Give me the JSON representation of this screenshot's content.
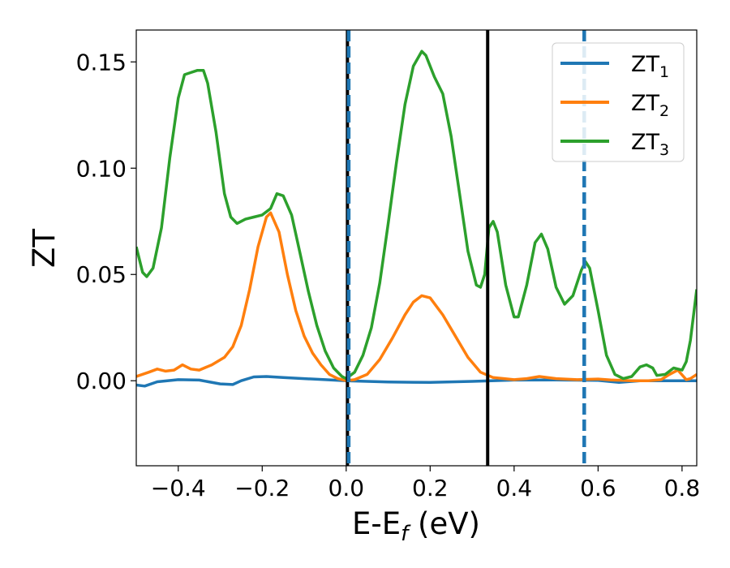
{
  "chart_data": {
    "type": "line",
    "xlabel": {
      "main": "E-E",
      "sub": "f",
      "unit": " (eV)"
    },
    "ylabel": "ZT",
    "xlim": [
      -0.5,
      0.835
    ],
    "ylim": [
      -0.04,
      0.165
    ],
    "xticks": [
      -0.4,
      -0.2,
      0.0,
      0.2,
      0.4,
      0.6,
      0.8
    ],
    "xtick_labels": [
      "−0.4",
      "−0.2",
      "0.0",
      "0.2",
      "0.4",
      "0.6",
      "0.8"
    ],
    "yticks": [
      0.0,
      0.05,
      0.1,
      0.15
    ],
    "ytick_labels": [
      "0.00",
      "0.05",
      "0.10",
      "0.15"
    ],
    "grid": false,
    "legend_position": "top-right",
    "series": [
      {
        "name": "ZT",
        "sub": "1",
        "color": "#1f77b4",
        "points": [
          [
            -0.5,
            -0.002
          ],
          [
            -0.48,
            -0.0025
          ],
          [
            -0.45,
            -0.0005
          ],
          [
            -0.4,
            0.0005
          ],
          [
            -0.35,
            0.0003
          ],
          [
            -0.3,
            -0.0015
          ],
          [
            -0.27,
            -0.0018
          ],
          [
            -0.25,
            0.0
          ],
          [
            -0.22,
            0.0018
          ],
          [
            -0.19,
            0.002
          ],
          [
            -0.15,
            0.0015
          ],
          [
            -0.1,
            0.001
          ],
          [
            -0.05,
            0.0005
          ],
          [
            0.0,
            0.0
          ],
          [
            0.05,
            -0.0003
          ],
          [
            0.1,
            -0.0006
          ],
          [
            0.2,
            -0.0008
          ],
          [
            0.3,
            -0.0003
          ],
          [
            0.4,
            0.0003
          ],
          [
            0.5,
            0.0004
          ],
          [
            0.6,
            0.0002
          ],
          [
            0.65,
            -0.0008
          ],
          [
            0.7,
            0.0
          ],
          [
            0.8,
            0.0
          ],
          [
            0.835,
            0.0
          ]
        ]
      },
      {
        "name": "ZT",
        "sub": "2",
        "color": "#ff7f0e",
        "points": [
          [
            -0.5,
            0.002
          ],
          [
            -0.47,
            0.004
          ],
          [
            -0.45,
            0.0055
          ],
          [
            -0.43,
            0.0045
          ],
          [
            -0.41,
            0.005
          ],
          [
            -0.39,
            0.0075
          ],
          [
            -0.37,
            0.0055
          ],
          [
            -0.35,
            0.005
          ],
          [
            -0.32,
            0.0075
          ],
          [
            -0.29,
            0.011
          ],
          [
            -0.27,
            0.016
          ],
          [
            -0.25,
            0.026
          ],
          [
            -0.23,
            0.043
          ],
          [
            -0.21,
            0.063
          ],
          [
            -0.19,
            0.077
          ],
          [
            -0.18,
            0.079
          ],
          [
            -0.16,
            0.07
          ],
          [
            -0.14,
            0.05
          ],
          [
            -0.12,
            0.033
          ],
          [
            -0.1,
            0.021
          ],
          [
            -0.08,
            0.013
          ],
          [
            -0.06,
            0.0075
          ],
          [
            -0.04,
            0.003
          ],
          [
            -0.02,
            0.001
          ],
          [
            0.0,
            0.0
          ],
          [
            0.02,
            0.0005
          ],
          [
            0.05,
            0.003
          ],
          [
            0.08,
            0.01
          ],
          [
            0.11,
            0.02
          ],
          [
            0.14,
            0.031
          ],
          [
            0.16,
            0.037
          ],
          [
            0.18,
            0.04
          ],
          [
            0.2,
            0.039
          ],
          [
            0.23,
            0.031
          ],
          [
            0.26,
            0.021
          ],
          [
            0.29,
            0.011
          ],
          [
            0.32,
            0.004
          ],
          [
            0.35,
            0.0015
          ],
          [
            0.4,
            0.0005
          ],
          [
            0.43,
            0.001
          ],
          [
            0.46,
            0.002
          ],
          [
            0.5,
            0.001
          ],
          [
            0.55,
            0.0005
          ],
          [
            0.6,
            0.0008
          ],
          [
            0.63,
            0.0004
          ],
          [
            0.68,
            0.0
          ],
          [
            0.72,
            0.0
          ],
          [
            0.75,
            0.0005
          ],
          [
            0.77,
            0.003
          ],
          [
            0.79,
            0.005
          ],
          [
            0.81,
            0.0005
          ],
          [
            0.82,
            0.001
          ],
          [
            0.835,
            0.003
          ]
        ]
      },
      {
        "name": "ZT",
        "sub": "3",
        "color": "#2ca02c",
        "points": [
          [
            -0.5,
            0.063
          ],
          [
            -0.485,
            0.051
          ],
          [
            -0.475,
            0.049
          ],
          [
            -0.46,
            0.053
          ],
          [
            -0.44,
            0.072
          ],
          [
            -0.42,
            0.105
          ],
          [
            -0.4,
            0.133
          ],
          [
            -0.385,
            0.144
          ],
          [
            -0.37,
            0.145
          ],
          [
            -0.355,
            0.146
          ],
          [
            -0.34,
            0.146
          ],
          [
            -0.33,
            0.14
          ],
          [
            -0.31,
            0.117
          ],
          [
            -0.29,
            0.088
          ],
          [
            -0.275,
            0.077
          ],
          [
            -0.26,
            0.074
          ],
          [
            -0.24,
            0.076
          ],
          [
            -0.22,
            0.077
          ],
          [
            -0.2,
            0.078
          ],
          [
            -0.18,
            0.081
          ],
          [
            -0.165,
            0.088
          ],
          [
            -0.15,
            0.087
          ],
          [
            -0.13,
            0.078
          ],
          [
            -0.11,
            0.06
          ],
          [
            -0.09,
            0.042
          ],
          [
            -0.07,
            0.026
          ],
          [
            -0.05,
            0.014
          ],
          [
            -0.03,
            0.006
          ],
          [
            -0.01,
            0.002
          ],
          [
            0.0,
            0.001
          ],
          [
            0.02,
            0.004
          ],
          [
            0.04,
            0.012
          ],
          [
            0.06,
            0.025
          ],
          [
            0.08,
            0.046
          ],
          [
            0.1,
            0.074
          ],
          [
            0.12,
            0.103
          ],
          [
            0.14,
            0.13
          ],
          [
            0.16,
            0.148
          ],
          [
            0.18,
            0.155
          ],
          [
            0.19,
            0.153
          ],
          [
            0.21,
            0.143
          ],
          [
            0.23,
            0.135
          ],
          [
            0.25,
            0.115
          ],
          [
            0.27,
            0.088
          ],
          [
            0.29,
            0.061
          ],
          [
            0.31,
            0.045
          ],
          [
            0.32,
            0.044
          ],
          [
            0.33,
            0.05
          ],
          [
            0.34,
            0.072
          ],
          [
            0.35,
            0.075
          ],
          [
            0.36,
            0.07
          ],
          [
            0.38,
            0.045
          ],
          [
            0.4,
            0.03
          ],
          [
            0.41,
            0.03
          ],
          [
            0.43,
            0.045
          ],
          [
            0.45,
            0.065
          ],
          [
            0.465,
            0.069
          ],
          [
            0.48,
            0.062
          ],
          [
            0.5,
            0.044
          ],
          [
            0.52,
            0.036
          ],
          [
            0.54,
            0.04
          ],
          [
            0.56,
            0.052
          ],
          [
            0.57,
            0.056
          ],
          [
            0.58,
            0.053
          ],
          [
            0.6,
            0.033
          ],
          [
            0.62,
            0.012
          ],
          [
            0.64,
            0.003
          ],
          [
            0.66,
            0.001
          ],
          [
            0.68,
            0.002
          ],
          [
            0.7,
            0.0065
          ],
          [
            0.715,
            0.0075
          ],
          [
            0.73,
            0.006
          ],
          [
            0.74,
            0.0025
          ],
          [
            0.76,
            0.003
          ],
          [
            0.78,
            0.006
          ],
          [
            0.8,
            0.005
          ],
          [
            0.81,
            0.009
          ],
          [
            0.82,
            0.019
          ],
          [
            0.835,
            0.043
          ]
        ]
      }
    ],
    "vlines": [
      {
        "x": 0.003,
        "color": "#000000",
        "style": "solid"
      },
      {
        "x": 0.006,
        "color": "#1f77b4",
        "style": "dashed"
      },
      {
        "x": 0.337,
        "color": "#000000",
        "style": "solid"
      },
      {
        "x": 0.567,
        "color": "#1f77b4",
        "style": "dashed"
      }
    ]
  }
}
